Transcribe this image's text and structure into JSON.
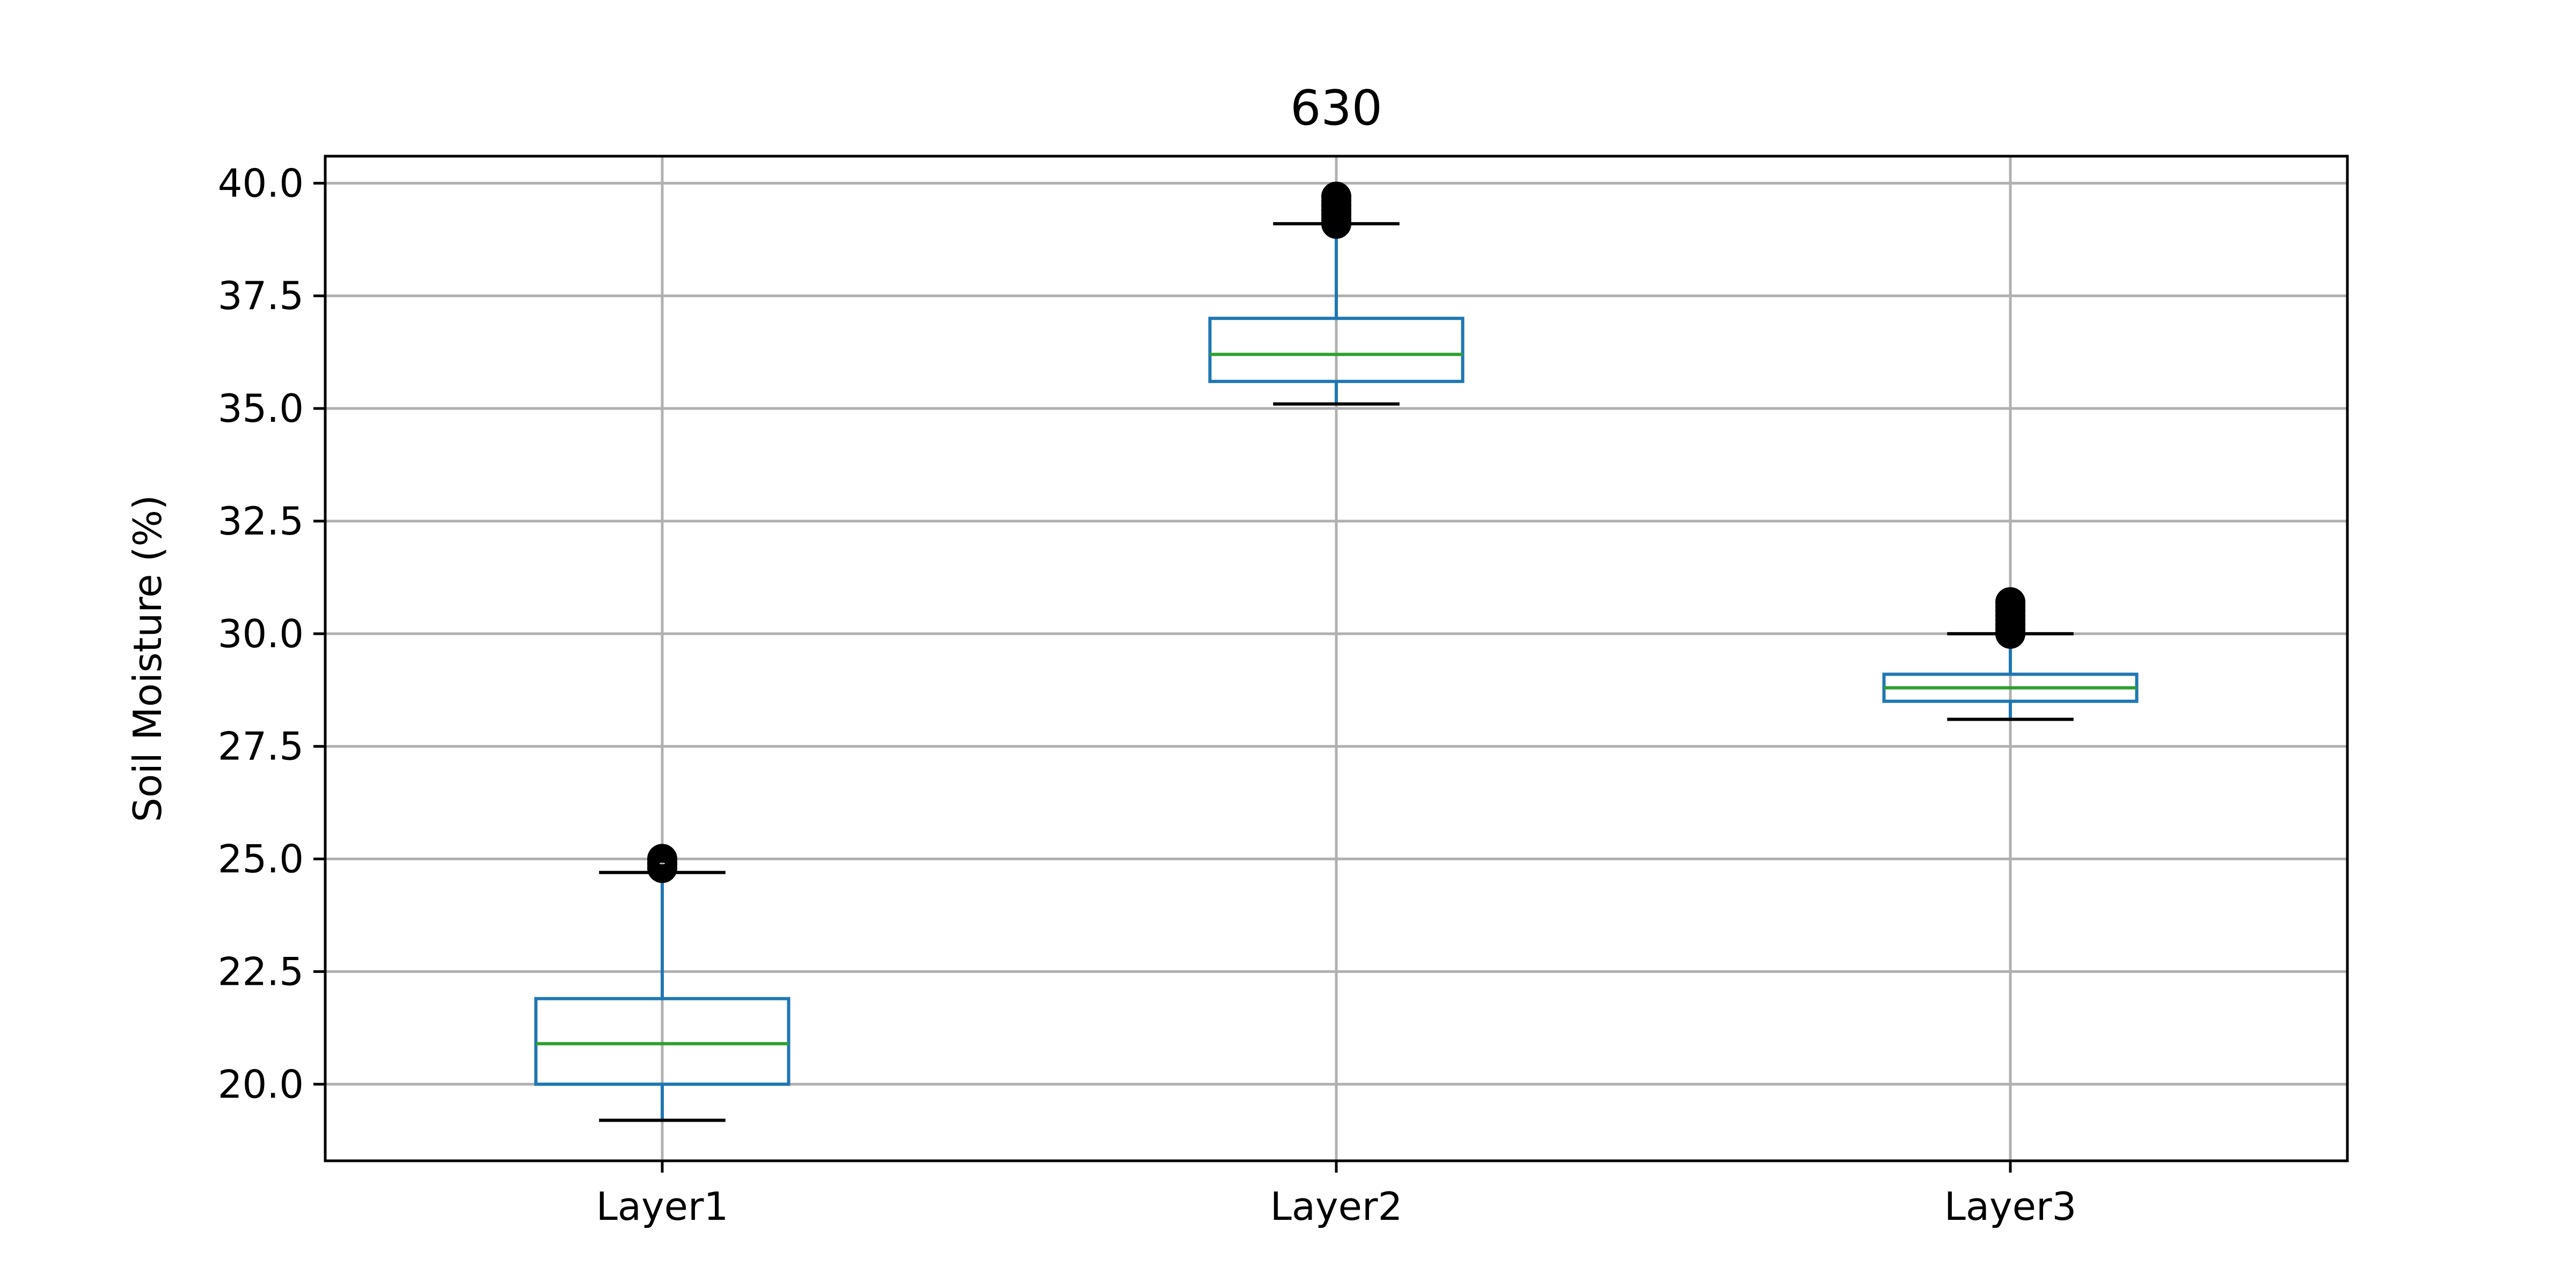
{
  "chart_data": {
    "type": "box",
    "title": "630",
    "xlabel": "",
    "ylabel": "Soil Moisture (%)",
    "ylim": [
      18.3,
      40.6
    ],
    "yticks": [
      "20.0",
      "22.5",
      "25.0",
      "27.5",
      "30.0",
      "32.5",
      "35.0",
      "37.5",
      "40.0"
    ],
    "grid": true,
    "categories": [
      "Layer1",
      "Layer2",
      "Layer3"
    ],
    "boxes": [
      {
        "category": "Layer1",
        "whisker_low": 19.2,
        "q1": 20.0,
        "median": 20.9,
        "q3": 21.9,
        "whisker_high": 24.7,
        "outliers": [
          24.8,
          24.9,
          25.0
        ]
      },
      {
        "category": "Layer2",
        "whisker_low": 35.1,
        "q1": 35.6,
        "median": 36.2,
        "q3": 37.0,
        "whisker_high": 39.1,
        "outliers": [
          39.1,
          39.2,
          39.3,
          39.4,
          39.5,
          39.6,
          39.7
        ]
      },
      {
        "category": "Layer3",
        "whisker_low": 28.1,
        "q1": 28.5,
        "median": 28.8,
        "q3": 29.1,
        "whisker_high": 30.0,
        "outliers": [
          30.0,
          30.1,
          30.2,
          30.3,
          30.4,
          30.5,
          30.6,
          30.7
        ]
      }
    ],
    "colors": {
      "box": "#1f77b4",
      "median": "#2ca02c",
      "whisker": "#000000",
      "outlier": "#000000",
      "grid": "#b0b0b0"
    }
  }
}
